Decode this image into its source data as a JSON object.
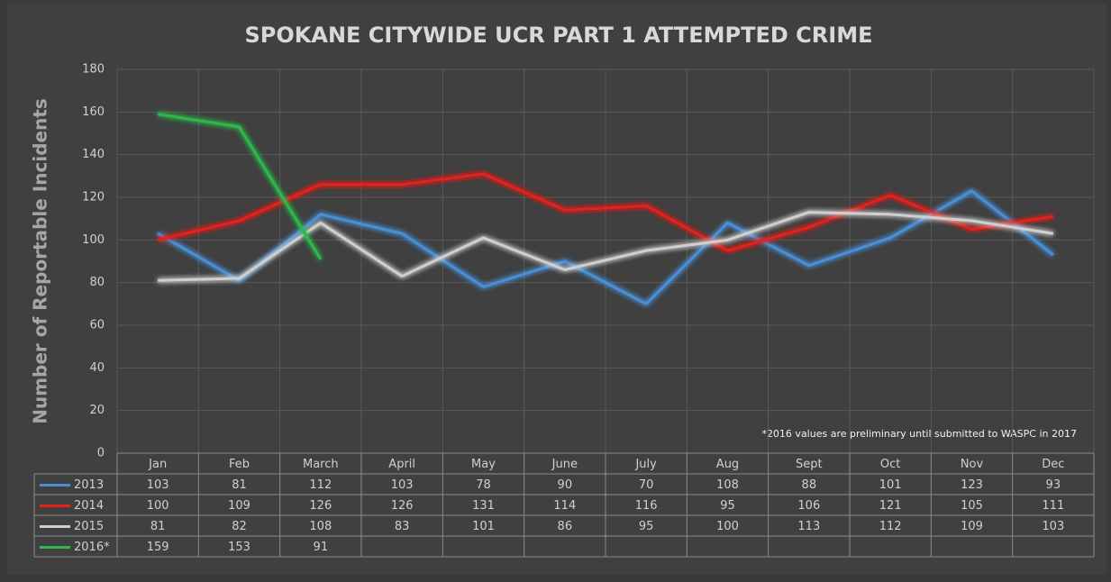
{
  "chart_data": {
    "type": "line",
    "title": "SPOKANE CITYWIDE UCR PART 1 ATTEMPTED CRIME",
    "y_label": "Number of  Reportable Incidents",
    "annotation": "*2016 values are preliminary until submitted to WASPC in 2017",
    "categories": [
      "Jan",
      "Feb",
      "March",
      "April",
      "May",
      "June",
      "July",
      "Aug",
      "Sept",
      "Oct",
      "Nov",
      "Dec"
    ],
    "series": [
      {
        "name": "2013",
        "color": "#4a8fd6",
        "values": [
          103,
          81,
          112,
          103,
          78,
          90,
          70,
          108,
          88,
          101,
          123,
          93
        ]
      },
      {
        "name": "2014",
        "color": "#e3221c",
        "values": [
          100,
          109,
          126,
          126,
          131,
          114,
          116,
          95,
          106,
          121,
          105,
          111
        ]
      },
      {
        "name": "2015",
        "color": "#cfcfcf",
        "values": [
          81,
          82,
          108,
          83,
          101,
          86,
          95,
          100,
          113,
          112,
          109,
          103
        ]
      },
      {
        "name": "2016*",
        "color": "#2fb84c",
        "values": [
          159,
          153,
          91,
          null,
          null,
          null,
          null,
          null,
          null,
          null,
          null,
          null
        ]
      }
    ],
    "ylim": [
      0,
      180
    ],
    "yticks": [
      0,
      20,
      40,
      60,
      80,
      100,
      120,
      140,
      160,
      180
    ],
    "grid": true
  }
}
